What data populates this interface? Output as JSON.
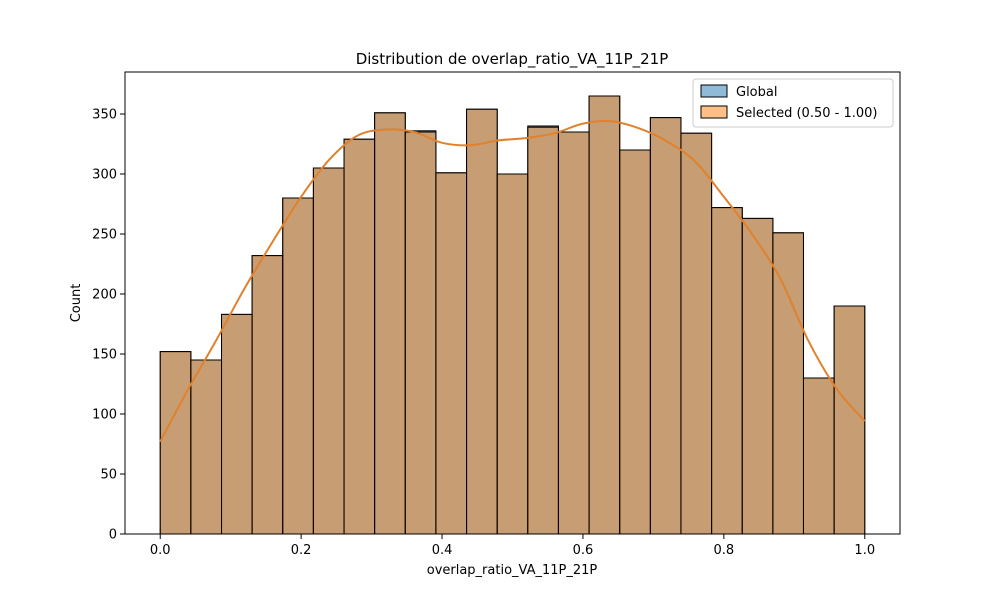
{
  "chart_data": {
    "type": "bar",
    "title": "Distribution de overlap_ratio_VA_11P_21P",
    "xlabel": "overlap_ratio_VA_11P_21P",
    "ylabel": "Count",
    "xlim": [
      -0.05,
      1.05
    ],
    "ylim": [
      0,
      385
    ],
    "x_ticks": [
      0.0,
      0.2,
      0.4,
      0.6,
      0.8,
      1.0
    ],
    "x_tick_labels": [
      "0.0",
      "0.2",
      "0.4",
      "0.6",
      "0.8",
      "1.0"
    ],
    "y_ticks": [
      0,
      50,
      100,
      150,
      200,
      250,
      300,
      350
    ],
    "y_tick_labels": [
      "0",
      "50",
      "100",
      "150",
      "200",
      "250",
      "300",
      "350"
    ],
    "bin_edges": [
      0.0,
      0.0435,
      0.087,
      0.1304,
      0.1739,
      0.2174,
      0.2609,
      0.3043,
      0.3478,
      0.3913,
      0.4348,
      0.4783,
      0.5217,
      0.5652,
      0.6087,
      0.6522,
      0.6957,
      0.7391,
      0.7826,
      0.8261,
      0.8696,
      0.913,
      0.9565,
      1.0
    ],
    "series": [
      {
        "name": "Global",
        "color": "#1f77b4",
        "values": [
          152,
          145,
          183,
          232,
          280,
          305,
          329,
          351,
          336,
          301,
          354,
          300,
          340,
          335,
          365,
          320,
          347,
          334,
          272,
          263,
          251,
          130,
          190
        ]
      },
      {
        "name": "Selected (0.50 - 1.00)",
        "color": "#ff7f0e",
        "values": [
          152,
          145,
          183,
          232,
          280,
          305,
          329,
          351,
          335,
          301,
          354,
          300,
          339,
          335,
          365,
          320,
          347,
          334,
          272,
          263,
          251,
          130,
          190
        ]
      }
    ],
    "kde": {
      "color": "#e1812c",
      "x": [
        0.0,
        0.04,
        0.08,
        0.12,
        0.16,
        0.2,
        0.24,
        0.28,
        0.32,
        0.36,
        0.4,
        0.44,
        0.48,
        0.52,
        0.56,
        0.6,
        0.64,
        0.68,
        0.72,
        0.76,
        0.8,
        0.84,
        0.88,
        0.92,
        0.96,
        1.0
      ],
      "y": [
        77,
        121,
        162,
        205,
        244,
        281,
        312,
        332,
        337,
        335,
        326,
        324,
        328,
        330,
        334,
        342,
        344,
        338,
        327,
        310,
        281,
        250,
        213,
        161,
        121,
        94
      ]
    },
    "legend": {
      "position": "top-right",
      "entries": [
        "Global",
        "Selected (0.50 - 1.00)"
      ]
    },
    "grid": false
  }
}
